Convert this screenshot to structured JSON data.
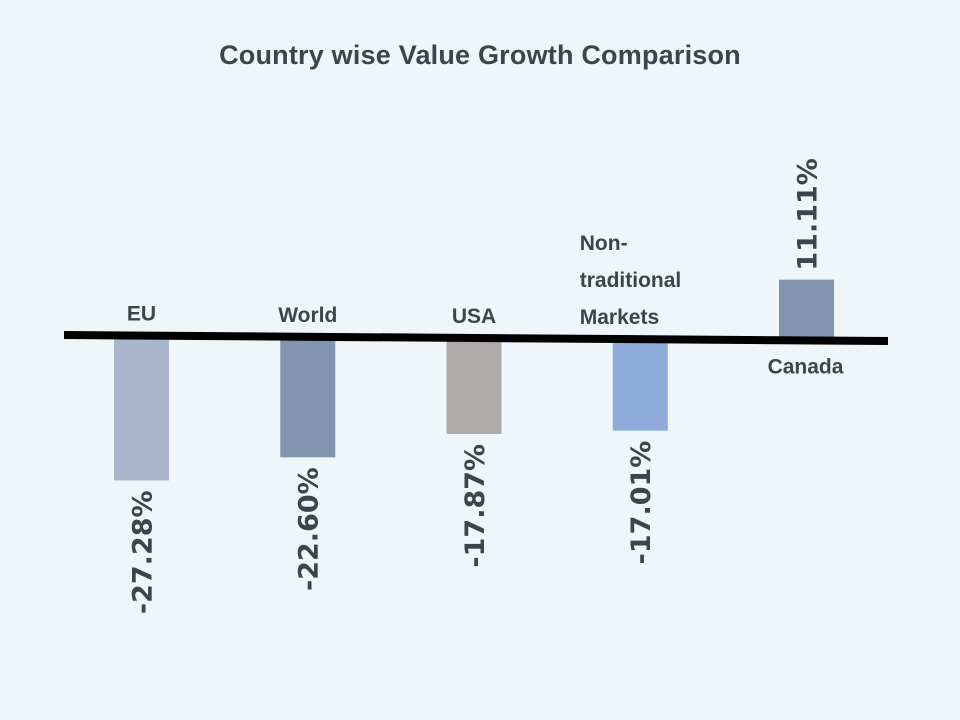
{
  "chart_data": {
    "type": "bar",
    "title": "Country wise Value Growth Comparison",
    "xlabel": "",
    "ylabel": "",
    "grid": false,
    "legend": "none",
    "categories": [
      {
        "label": [
          "EU"
        ],
        "value": -27.28,
        "value_label": "-27.28%",
        "color": "#a9b6cb"
      },
      {
        "label": [
          "World"
        ],
        "value": -22.6,
        "value_label": "-22.60%",
        "color": "#8094af"
      },
      {
        "label": [
          "USA"
        ],
        "value": -17.87,
        "value_label": "-17.87%",
        "color": "#aeaaaa"
      },
      {
        "label": [
          "Non-",
          "traditional",
          "Markets"
        ],
        "value": -17.01,
        "value_label": "-17.01%",
        "color": "#8eabdc"
      },
      {
        "label": [
          "Canada"
        ],
        "value": 11.11,
        "value_label": "11.11%",
        "color": "#8094af"
      }
    ],
    "values": [
      -27.28,
      -22.6,
      -17.87,
      -17.01,
      11.11
    ]
  }
}
